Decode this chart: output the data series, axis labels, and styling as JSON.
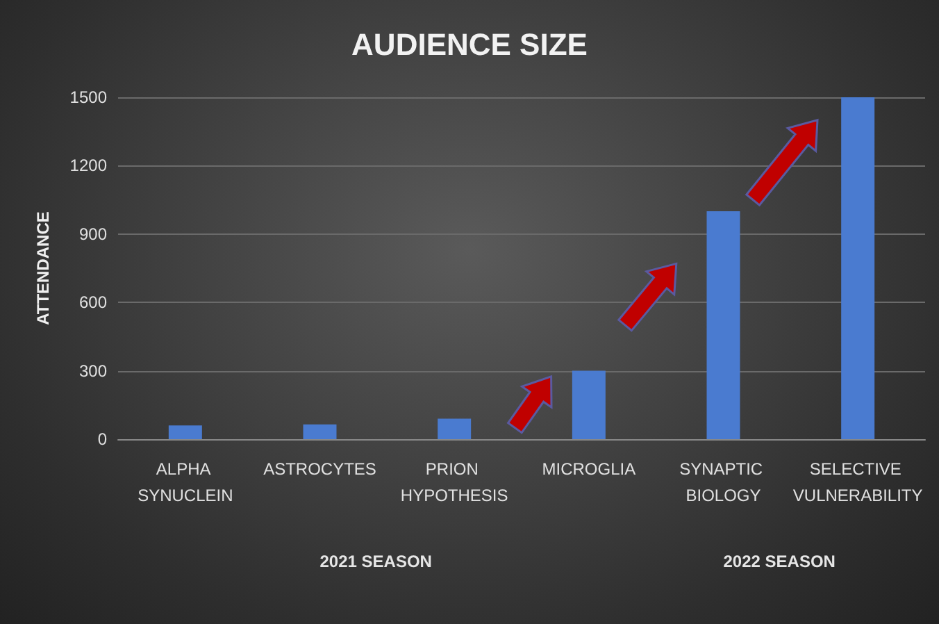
{
  "chart_data": {
    "type": "bar",
    "title": "AUDIENCE SIZE",
    "ylabel": "ATTENDANCE",
    "categories": [
      "ALPHA SYNUCLEIN",
      "ASTROCYTES",
      "PRION HYPOTHESIS",
      "MICROGLIA",
      "SYNAPTIC BIOLOGY",
      "SELECTIVE VULNERABILITY"
    ],
    "values": [
      60,
      65,
      90,
      300,
      1000,
      1500
    ],
    "color": "#4a7bd0",
    "ylim": [
      0,
      1500
    ],
    "yticks": [
      0,
      300,
      600,
      900,
      1200,
      1500
    ],
    "grid": "y",
    "annotations": [
      "2021 SEASON",
      "2022 SEASON"
    ]
  }
}
